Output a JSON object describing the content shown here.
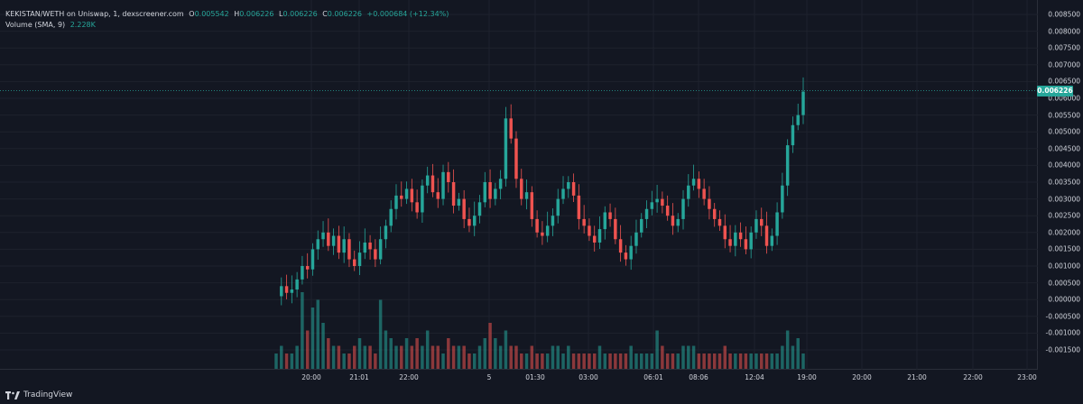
{
  "legend": {
    "symbol": "KEKISTAN/WETH on Uniswap, 1, dexscreener.com",
    "o_label": "O",
    "o_value": "0.005542",
    "h_label": "H",
    "h_value": "0.006226",
    "l_label": "L",
    "l_value": "0.006226",
    "c_label": "C",
    "c_value": "0.006226",
    "change": "+0.000684 (+12.34%)",
    "volume_label": "Volume (SMA, 9)",
    "volume_value": "2.228K"
  },
  "price_axis": {
    "ticks": [
      "0.008500",
      "0.008000",
      "0.007500",
      "0.007000",
      "0.006500",
      "0.006000",
      "0.005500",
      "0.005000",
      "0.004500",
      "0.004000",
      "0.003500",
      "0.003000",
      "0.002500",
      "0.002000",
      "0.001500",
      "0.001000",
      "0.000500",
      "0.000000",
      "-0.000500",
      "-0.001000",
      "-0.001500"
    ],
    "current_price": "0.006226"
  },
  "time_axis": {
    "ticks": [
      "20:00",
      "21:01",
      "22:00",
      "5",
      "01:30",
      "03:00",
      "06:01",
      "08:06",
      "12:04",
      "19:00",
      "20:00",
      "21:00",
      "22:00",
      "23:00"
    ]
  },
  "colors": {
    "background": "#131722",
    "up": "#26a69a",
    "down": "#ef5350",
    "grid": "#1e222d",
    "price_line": "#26a69a"
  },
  "brand": {
    "icon": "tradingview-logo-icon",
    "label": "TradingView"
  },
  "chart_data": {
    "type": "candlestick",
    "ylim": [
      -0.0018,
      0.0087
    ],
    "last_price": 0.006226,
    "price_series": [
      0.0001,
      0.0004,
      0.0002,
      0.0003,
      0.0006,
      0.001,
      0.0009,
      0.0015,
      0.0018,
      0.002,
      0.0016,
      0.0019,
      0.0014,
      0.0018,
      0.0012,
      0.001,
      0.0014,
      0.0017,
      0.0015,
      0.0012,
      0.0018,
      0.0022,
      0.0027,
      0.0031,
      0.003,
      0.0033,
      0.0029,
      0.0026,
      0.0034,
      0.0037,
      0.0032,
      0.003,
      0.0038,
      0.0035,
      0.0028,
      0.003,
      0.0024,
      0.0022,
      0.0025,
      0.0029,
      0.0035,
      0.003,
      0.0033,
      0.0036,
      0.0054,
      0.0048,
      0.0036,
      0.003,
      0.0032,
      0.0024,
      0.002,
      0.0019,
      0.0022,
      0.0025,
      0.003,
      0.0033,
      0.0035,
      0.0031,
      0.0024,
      0.0022,
      0.0019,
      0.0017,
      0.0021,
      0.0026,
      0.0024,
      0.0018,
      0.0014,
      0.0012,
      0.0016,
      0.002,
      0.0024,
      0.0027,
      0.0029,
      0.003,
      0.0028,
      0.0025,
      0.0022,
      0.0024,
      0.003,
      0.0034,
      0.0036,
      0.0033,
      0.003,
      0.0027,
      0.0024,
      0.0022,
      0.0018,
      0.0016,
      0.002,
      0.0018,
      0.0015,
      0.002,
      0.0024,
      0.0022,
      0.0016,
      0.0019,
      0.0026,
      0.0034,
      0.0046,
      0.0052,
      0.0055,
      0.0062
    ],
    "volume_relative": [
      0.2,
      0.3,
      0.2,
      0.2,
      0.3,
      1.0,
      0.5,
      0.8,
      0.9,
      0.6,
      0.4,
      0.3,
      0.3,
      0.2,
      0.2,
      0.3,
      0.4,
      0.3,
      0.3,
      0.2,
      0.9,
      0.5,
      0.4,
      0.3,
      0.3,
      0.4,
      0.3,
      0.4,
      0.3,
      0.5,
      0.3,
      0.3,
      0.2,
      0.4,
      0.3,
      0.3,
      0.3,
      0.2,
      0.2,
      0.3,
      0.4,
      0.6,
      0.4,
      0.3,
      0.5,
      0.3,
      0.3,
      0.2,
      0.2,
      0.3,
      0.2,
      0.2,
      0.2,
      0.3,
      0.3,
      0.2,
      0.3,
      0.2,
      0.2,
      0.2,
      0.2,
      0.2,
      0.3,
      0.2,
      0.2,
      0.2,
      0.2,
      0.2,
      0.3,
      0.2,
      0.2,
      0.2,
      0.2,
      0.5,
      0.3,
      0.2,
      0.2,
      0.2,
      0.3,
      0.3,
      0.3,
      0.2,
      0.2,
      0.2,
      0.2,
      0.2,
      0.3,
      0.2,
      0.2,
      0.2,
      0.2,
      0.2,
      0.2,
      0.2,
      0.2,
      0.2,
      0.2,
      0.3,
      0.5,
      0.3,
      0.4,
      0.2
    ]
  }
}
